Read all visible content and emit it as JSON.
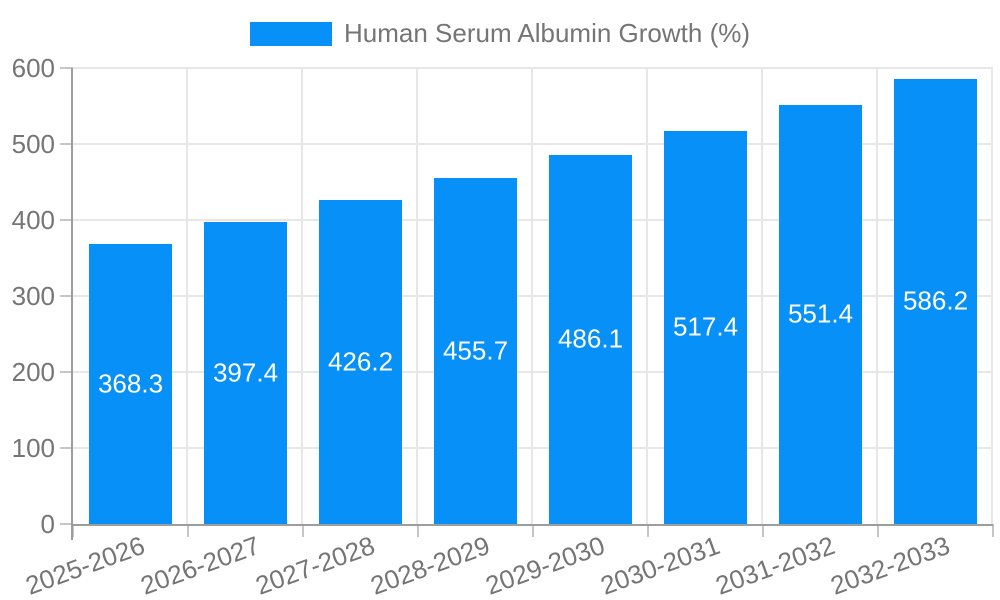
{
  "chart_data": {
    "type": "bar",
    "title": "Human Serum Albumin Growth (%)",
    "categories": [
      "2025-2026",
      "2026-2027",
      "2027-2028",
      "2028-2029",
      "2029-2030",
      "2030-2031",
      "2031-2032",
      "2032-2033"
    ],
    "values": [
      368.3,
      397.4,
      426.2,
      455.7,
      486.1,
      517.4,
      551.4,
      586.2
    ],
    "xlabel": "",
    "ylabel": "",
    "ylim": [
      0,
      600
    ],
    "yticks": [
      0,
      100,
      200,
      300,
      400,
      500,
      600
    ],
    "grid": true,
    "value_labels_shown": true,
    "legend_position": "top",
    "x_label_rotation_deg": -20,
    "colors": {
      "bar": "#0690f8",
      "value_label": "#ffffff",
      "tick_text": "#757575",
      "grid_line": "#e7e7e7",
      "axis_line": "#9d9d9d"
    }
  }
}
